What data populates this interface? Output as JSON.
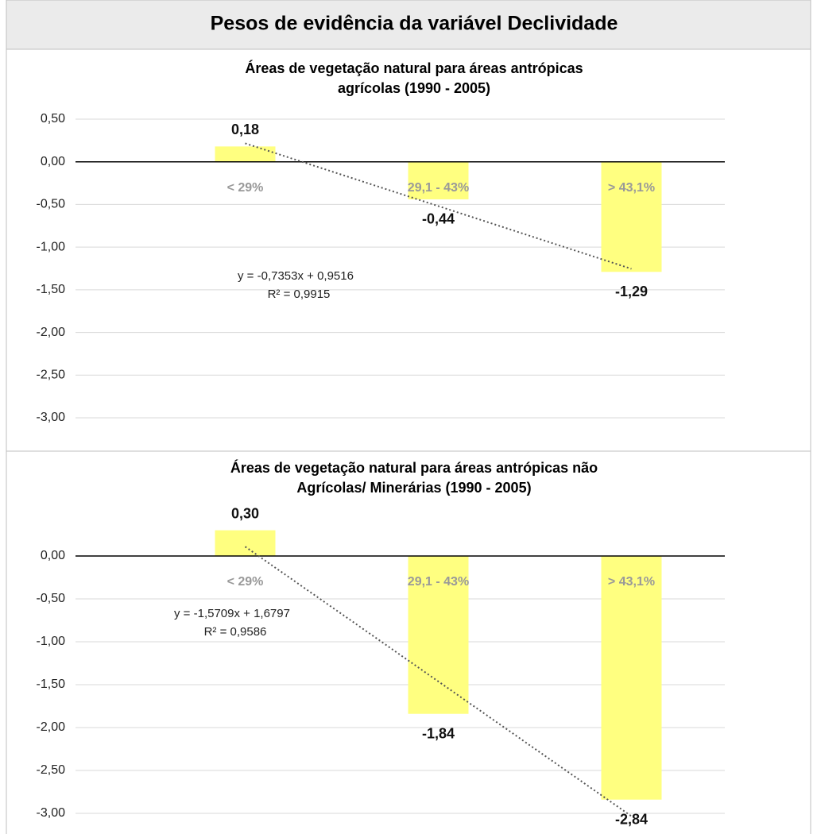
{
  "header": {
    "title": "Pesos de evidência da variável Declividade"
  },
  "chart_data": [
    {
      "type": "bar",
      "title": [
        "Áreas de vegetação natural para áreas antrópicas",
        "agrícolas (1990 - 2005)"
      ],
      "categories": [
        "< 29%",
        "29,1 - 43%",
        "> 43,1%"
      ],
      "values": [
        0.18,
        -0.44,
        -1.29
      ],
      "value_labels": [
        "0,18",
        "-0,44",
        "-1,29"
      ],
      "color": "#ffff80",
      "ylim": [
        -3,
        0.5
      ],
      "yticks": [
        {
          "value": 0.5,
          "label": "0,50"
        },
        {
          "value": 0,
          "label": "0,00"
        },
        {
          "value": -0.5,
          "label": "-0,50"
        },
        {
          "value": -1,
          "label": "-1,00"
        },
        {
          "value": -1.5,
          "label": "-1,50"
        },
        {
          "value": -2,
          "label": "-2,00"
        },
        {
          "value": -2.5,
          "label": "-2,50"
        },
        {
          "value": -3,
          "label": "-3,00"
        }
      ],
      "grid": true,
      "trendline": {
        "slope": -0.7353,
        "intercept": 0.9516,
        "equation": "y = -0,7353x + 0,9516",
        "r2_label": "R² = 0,9915"
      }
    },
    {
      "type": "bar",
      "title": [
        "Áreas de vegetação natural para áreas antrópicas não",
        "Agrícolas/ Minerárias (1990 - 2005)"
      ],
      "categories": [
        "< 29%",
        "29,1 - 43%",
        "> 43,1%"
      ],
      "values": [
        0.3,
        -1.84,
        -2.84
      ],
      "value_labels": [
        "0,30",
        "-1,84",
        "-2,84"
      ],
      "color": "#ffff80",
      "ylim": [
        -3,
        0.5
      ],
      "yticks": [
        {
          "value": 0,
          "label": "0,00"
        },
        {
          "value": -0.5,
          "label": "-0,50"
        },
        {
          "value": -1,
          "label": "-1,00"
        },
        {
          "value": -1.5,
          "label": "-1,50"
        },
        {
          "value": -2,
          "label": "-2,00"
        },
        {
          "value": -2.5,
          "label": "-2,50"
        },
        {
          "value": -3,
          "label": "-3,00"
        }
      ],
      "grid": true,
      "trendline": {
        "slope": -1.5709,
        "intercept": 1.6797,
        "equation": "y = -1,5709x + 1,6797",
        "r2_label": "R² = 0,9586"
      }
    }
  ]
}
